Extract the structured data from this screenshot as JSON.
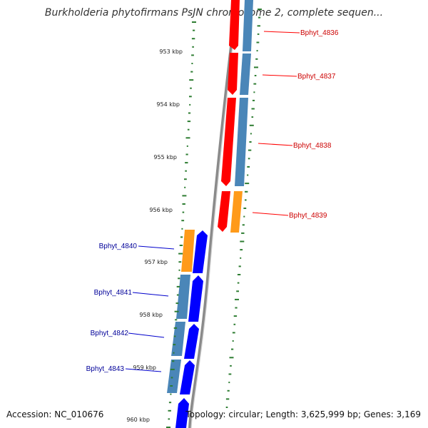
{
  "title": "Burkholderia phytofirmans PsJN chromosome 2, complete sequen...",
  "ticks": [
    "953 kbp",
    "954 kbp",
    "955 kbp",
    "956 kbp",
    "957 kbp",
    "958 kbp",
    "959 kbp",
    "960 kbp"
  ],
  "genes": [
    {
      "id": "Bphyt_4836",
      "strand": "reverse",
      "color": "#cc0000"
    },
    {
      "id": "Bphyt_4837",
      "strand": "reverse",
      "color": "#cc0000"
    },
    {
      "id": "Bphyt_4838",
      "strand": "reverse",
      "color": "#cc0000"
    },
    {
      "id": "Bphyt_4839",
      "strand": "reverse",
      "color": "#cc0000"
    },
    {
      "id": "Bphyt_4840",
      "strand": "forward",
      "color": "#000099"
    },
    {
      "id": "Bphyt_4841",
      "strand": "forward",
      "color": "#000099"
    },
    {
      "id": "Bphyt_4842",
      "strand": "forward",
      "color": "#000099"
    },
    {
      "id": "Bphyt_4843",
      "strand": "forward",
      "color": "#000099"
    }
  ],
  "colors": {
    "reverse_cds": "#ff0000",
    "forward_cds": "#0000ff",
    "gene_blue": "#4a86b8",
    "gene_orange": "#ff8c00",
    "gc_skew": "#2e7d32",
    "backbone": "#888888"
  },
  "footer": {
    "accession": "Accession: NC_010676",
    "summary": "Topology: circular; Length: 3,625,999 bp; Genes: 3,169"
  }
}
